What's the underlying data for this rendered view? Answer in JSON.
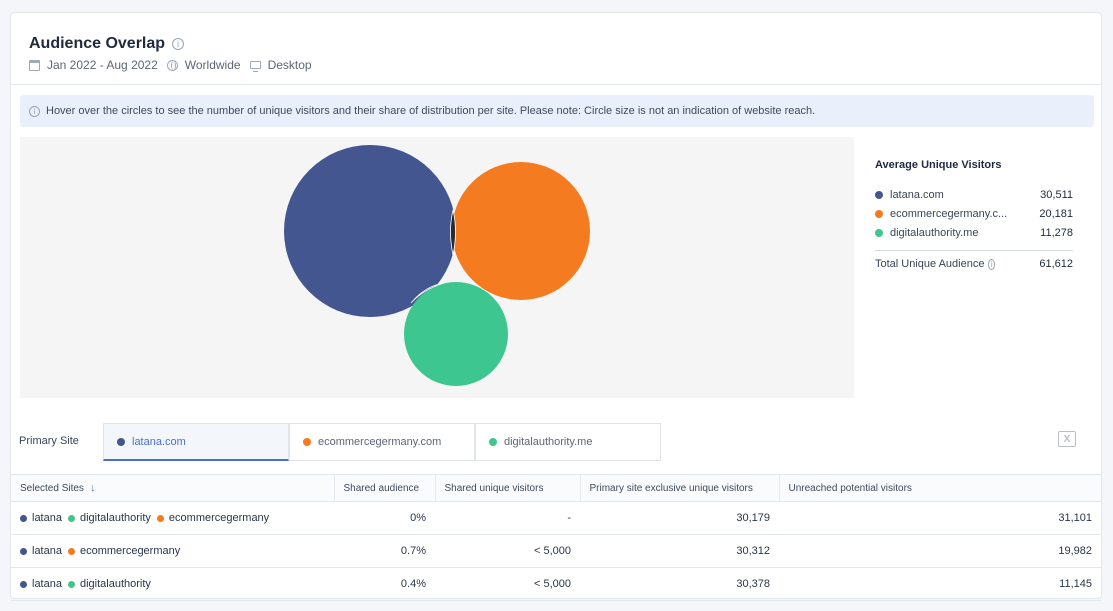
{
  "header": {
    "title": "Audience Overlap",
    "date_range": "Jan 2022 - Aug 2022",
    "region": "Worldwide",
    "device": "Desktop"
  },
  "notice": "Hover over the circles to see the number of unique visitors and their share of distribution per site. Please note: Circle size is not an indication of website reach.",
  "colors": {
    "latana": "#43568f",
    "ecommercegermany": "#f47b20",
    "digitalauthority": "#3ec690"
  },
  "legend": {
    "title": "Average Unique Visitors",
    "items": [
      {
        "name": "latana.com",
        "value": "30,511",
        "color": "#43568f"
      },
      {
        "name": "ecommercegermany.c...",
        "value": "20,181",
        "color": "#f47b20"
      },
      {
        "name": "digitalauthority.me",
        "value": "11,278",
        "color": "#3ec690"
      }
    ],
    "total_label": "Total Unique Audience",
    "total_value": "61,612"
  },
  "primary_site": {
    "label": "Primary Site",
    "tabs": [
      {
        "label": "latana.com",
        "color": "#43568f"
      },
      {
        "label": "ecommercegermany.com",
        "color": "#f47b20"
      },
      {
        "label": "digitalauthority.me",
        "color": "#3ec690"
      }
    ]
  },
  "table": {
    "headers": [
      "Selected Sites",
      "Shared audience",
      "Shared unique visitors",
      "Primary site exclusive unique visitors",
      "Unreached potential visitors"
    ],
    "rows": [
      {
        "sites": [
          {
            "name": "latana",
            "color": "#43568f"
          },
          {
            "name": "digitalauthority",
            "color": "#3ec690"
          },
          {
            "name": "ecommercegermany",
            "color": "#f47b20"
          }
        ],
        "shared_audience": "0%",
        "shared_unique": "-",
        "exclusive": "30,179",
        "unreached": "31,101"
      },
      {
        "sites": [
          {
            "name": "latana",
            "color": "#43568f"
          },
          {
            "name": "ecommercegermany",
            "color": "#f47b20"
          }
        ],
        "shared_audience": "0.7%",
        "shared_unique": "< 5,000",
        "exclusive": "30,312",
        "unreached": "19,982"
      },
      {
        "sites": [
          {
            "name": "latana",
            "color": "#43568f"
          },
          {
            "name": "digitalauthority",
            "color": "#3ec690"
          }
        ],
        "shared_audience": "0.4%",
        "shared_unique": "< 5,000",
        "exclusive": "30,378",
        "unreached": "11,145"
      }
    ]
  }
}
